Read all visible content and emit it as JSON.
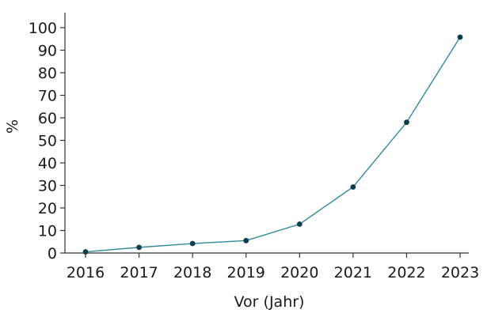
{
  "chart_data": {
    "type": "line",
    "categories": [
      "2016",
      "2017",
      "2018",
      "2019",
      "2020",
      "2021",
      "2022",
      "2023"
    ],
    "series": [
      {
        "values": [
          0.5,
          2.5,
          4.2,
          5.5,
          12.8,
          29.3,
          58.0,
          95.8
        ],
        "color": "#2f8a9c",
        "marker_color": "#0f3e4a"
      }
    ],
    "xlabel": "Vor (Jahr)",
    "ylabel": "%",
    "ylim": [
      0,
      100
    ],
    "yticks": [
      0,
      10,
      20,
      30,
      40,
      50,
      60,
      70,
      80,
      90,
      100
    ],
    "grid": false,
    "legend": "none"
  }
}
